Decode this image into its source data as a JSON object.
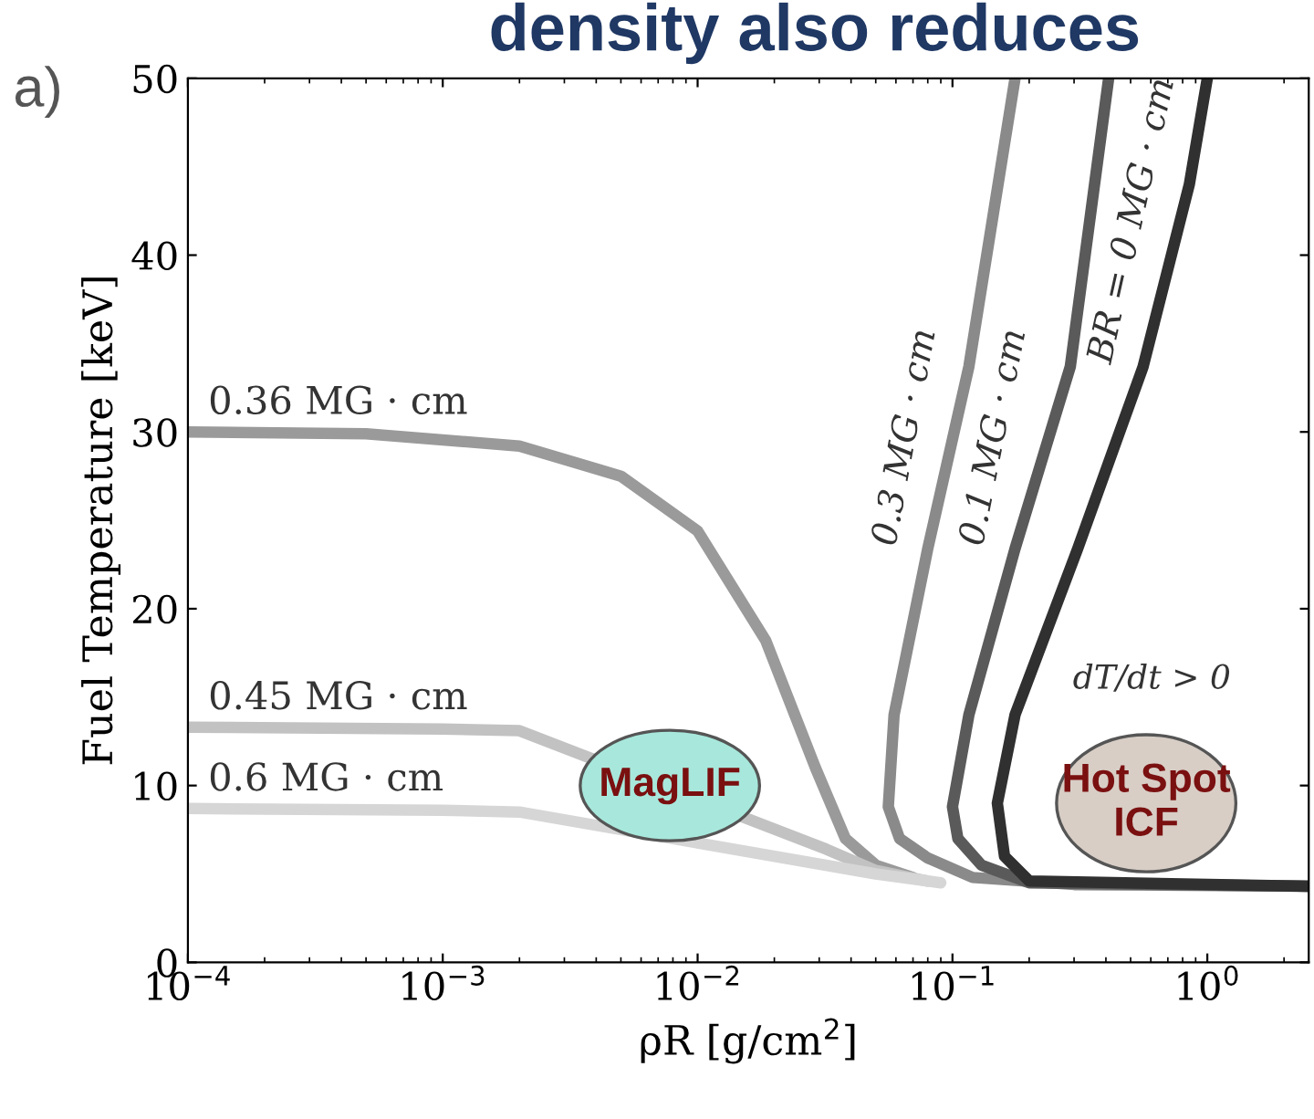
{
  "chart_data": {
    "type": "line",
    "title": "density also reduces",
    "xlabel": "ρR [g/cm$^{2}$]",
    "ylabel": "Fuel Temperature [keV]",
    "log": "x",
    "xlim": [
      0.0001,
      2.5
    ],
    "ylim": [
      0,
      50
    ],
    "xticks": [
      {
        "value": 0.0001,
        "label": "10$^{−4}$"
      },
      {
        "value": 0.001,
        "label": "10$^{−3}$"
      },
      {
        "value": 0.01,
        "label": "10$^{−2}$"
      },
      {
        "value": 0.1,
        "label": "10$^{−1}$"
      },
      {
        "value": 1,
        "label": "10$^{0}$"
      }
    ],
    "yticks": [
      0,
      10,
      20,
      30,
      40,
      50
    ],
    "grid": false,
    "legend": false,
    "marker": "none",
    "line_style": "solid",
    "series": [
      {
        "name": "0.36 MG · cm",
        "color": "#9a9a9a",
        "x": [
          0.0001,
          0.0005,
          0.002,
          0.005,
          0.01,
          0.0185,
          0.029,
          0.038,
          0.05,
          0.07
        ],
        "values": [
          30,
          29.9,
          29.2,
          27.5,
          24.4,
          18.2,
          11,
          7,
          5.5,
          4.8
        ]
      },
      {
        "name": "0.45 MG · cm",
        "color": "#c2c2c2",
        "x": [
          0.0001,
          0.001,
          0.002,
          0.032,
          0.05,
          0.08
        ],
        "values": [
          13.3,
          13.2,
          13.1,
          6.4,
          5.2,
          4.6
        ]
      },
      {
        "name": "0.6 MG · cm",
        "color": "#d6d6d6",
        "x": [
          0.0001,
          0.001,
          0.002,
          0.05,
          0.09
        ],
        "values": [
          8.7,
          8.6,
          8.5,
          5,
          4.5
        ]
      },
      {
        "name": "0.3 MG · cm",
        "color": "#8a8a8a",
        "x": [
          2.5,
          0.3,
          0.12,
          0.08,
          0.062,
          0.056,
          0.059,
          0.08,
          0.116,
          0.176
        ],
        "values": [
          4.3,
          4.4,
          4.8,
          5.9,
          7,
          8.8,
          14,
          23.4,
          33.7,
          50
        ]
      },
      {
        "name": "0.1 MG · cm",
        "color": "#5a5a5a",
        "x": [
          2.5,
          0.2,
          0.13,
          0.105,
          0.1,
          0.116,
          0.176,
          0.29,
          0.41
        ],
        "values": [
          4.3,
          4.5,
          5.5,
          7,
          8.8,
          14,
          23.4,
          33.7,
          50
        ]
      },
      {
        "name": "BR = 0 MG · cm",
        "color": "#303030",
        "x": [
          2.5,
          0.2,
          0.16,
          0.15,
          0.176,
          0.31,
          0.56,
          0.85,
          1.0
        ],
        "values": [
          4.3,
          4.6,
          6,
          9,
          14,
          23.4,
          33.7,
          44,
          50
        ]
      }
    ],
    "annotations": [
      "a)",
      "MagLIF",
      "Hot Spot\nICF",
      "dT/dt > 0"
    ]
  }
}
